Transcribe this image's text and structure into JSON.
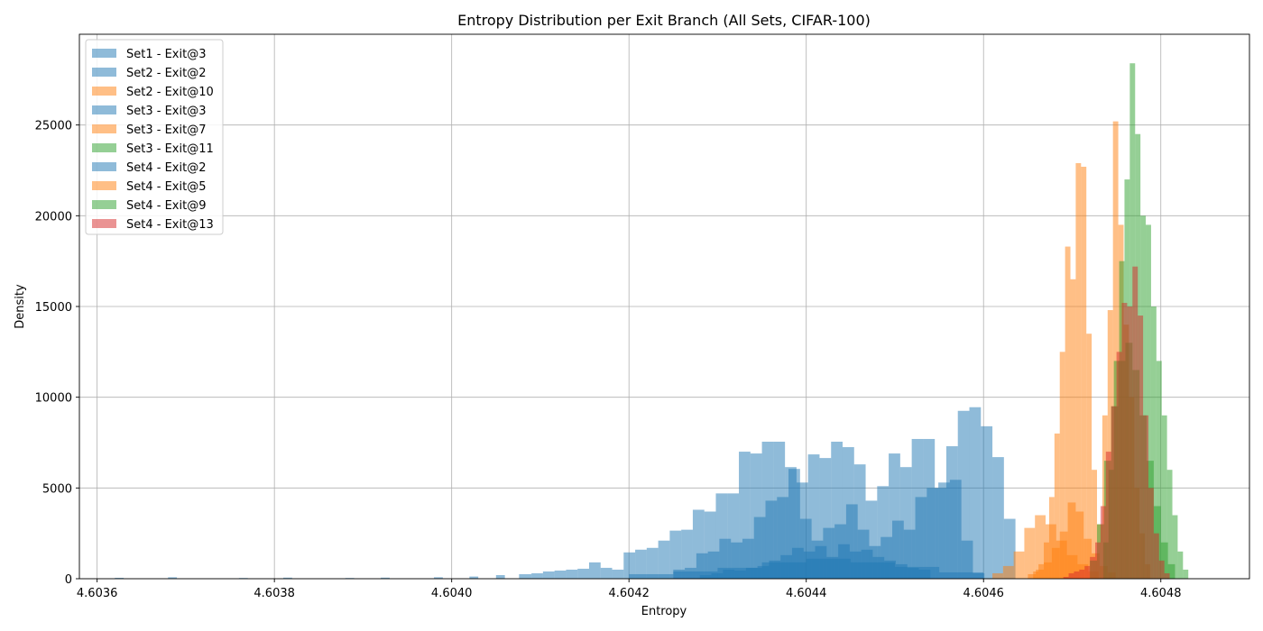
{
  "chart_data": {
    "type": "histogram",
    "title": "Entropy Distribution per Exit Branch (All Sets, CIFAR-100)",
    "xlabel": "Entropy",
    "ylabel": "Density",
    "xlim": [
      4.60358,
      4.6049
    ],
    "ylim": [
      0,
      30000
    ],
    "x_ticks": [
      {
        "value": 4.6036,
        "label": "4.6036"
      },
      {
        "value": 4.6038,
        "label": "4.6038"
      },
      {
        "value": 4.604,
        "label": "4.6040"
      },
      {
        "value": 4.6042,
        "label": "4.6042"
      },
      {
        "value": 4.6044,
        "label": "4.6044"
      },
      {
        "value": 4.6046,
        "label": "4.6046"
      },
      {
        "value": 4.6048,
        "label": "4.6048"
      }
    ],
    "y_ticks": [
      {
        "value": 0,
        "label": "0"
      },
      {
        "value": 5000,
        "label": "5000"
      },
      {
        "value": 10000,
        "label": "10000"
      },
      {
        "value": 15000,
        "label": "15000"
      },
      {
        "value": 20000,
        "label": "20000"
      },
      {
        "value": 25000,
        "label": "25000"
      }
    ],
    "grid": true,
    "legend_position": "upper-left",
    "series": [
      {
        "name": "Set1 - Exit@3",
        "color": "#1f77b4",
        "alpha": 0.5,
        "bins": [
          [
            4.60362,
            4.60363,
            50
          ],
          [
            4.60368,
            4.60369,
            80
          ],
          [
            4.60376,
            4.60377,
            40
          ],
          [
            4.60381,
            4.60382,
            60
          ],
          [
            4.60388,
            4.60389,
            40
          ],
          [
            4.60392,
            4.60393,
            60
          ],
          [
            4.60398,
            4.60399,
            80
          ],
          [
            4.60402,
            4.60403,
            120
          ],
          [
            4.60405,
            4.60406,
            200
          ],
          [
            4.604076,
            4.60409,
            250
          ],
          [
            4.60409,
            4.604103,
            300
          ],
          [
            4.604103,
            4.604116,
            400
          ],
          [
            4.604116,
            4.604129,
            450
          ],
          [
            4.604129,
            4.604142,
            500
          ],
          [
            4.604142,
            4.604155,
            550
          ],
          [
            4.604155,
            4.604168,
            900
          ],
          [
            4.604168,
            4.604181,
            600
          ],
          [
            4.604181,
            4.604194,
            500
          ],
          [
            4.604194,
            4.604207,
            1450
          ],
          [
            4.604207,
            4.60422,
            1600
          ],
          [
            4.60422,
            4.604233,
            1700
          ],
          [
            4.604233,
            4.604246,
            2100
          ],
          [
            4.604246,
            4.604259,
            2650
          ],
          [
            4.604259,
            4.604272,
            2700
          ],
          [
            4.604272,
            4.604285,
            3800
          ],
          [
            4.604285,
            4.604298,
            3700
          ],
          [
            4.604298,
            4.604311,
            4700
          ],
          [
            4.604311,
            4.604324,
            4700
          ],
          [
            4.604324,
            4.604337,
            7000
          ],
          [
            4.604337,
            4.60435,
            6900
          ],
          [
            4.60435,
            4.604363,
            7550
          ],
          [
            4.604363,
            4.604376,
            7550
          ],
          [
            4.604376,
            4.604389,
            6150
          ],
          [
            4.604389,
            4.604402,
            5300
          ],
          [
            4.604402,
            4.604415,
            6850
          ],
          [
            4.604415,
            4.604428,
            6650
          ],
          [
            4.604428,
            4.604441,
            7550
          ],
          [
            4.604441,
            4.604454,
            7250
          ],
          [
            4.604454,
            4.604467,
            6300
          ],
          [
            4.604467,
            4.60448,
            4300
          ],
          [
            4.60448,
            4.604493,
            5100
          ],
          [
            4.604493,
            4.604506,
            6900
          ],
          [
            4.604506,
            4.604519,
            6150
          ],
          [
            4.604519,
            4.604532,
            7700
          ],
          [
            4.604532,
            4.604545,
            7700
          ],
          [
            4.604545,
            4.604558,
            5000
          ],
          [
            4.604558,
            4.604571,
            7300
          ],
          [
            4.604571,
            4.604584,
            9250
          ],
          [
            4.604584,
            4.604597,
            9450
          ],
          [
            4.604597,
            4.60461,
            8400
          ],
          [
            4.60461,
            4.604623,
            6700
          ],
          [
            4.604623,
            4.604636,
            3300
          ]
        ]
      },
      {
        "name": "Set2 - Exit@2",
        "color": "#1f77b4",
        "alpha": 0.5,
        "bins": [
          [
            4.60428,
            4.604293,
            200
          ],
          [
            4.604293,
            4.604306,
            300
          ],
          [
            4.604306,
            4.604319,
            500
          ],
          [
            4.604319,
            4.604332,
            450
          ],
          [
            4.604332,
            4.604345,
            600
          ],
          [
            4.604345,
            4.604358,
            700
          ],
          [
            4.604358,
            4.604371,
            1000
          ],
          [
            4.604371,
            4.604384,
            1300
          ],
          [
            4.604384,
            4.604397,
            1700
          ],
          [
            4.604397,
            4.60441,
            1500
          ],
          [
            4.60441,
            4.604423,
            1800
          ],
          [
            4.604423,
            4.604436,
            1200
          ],
          [
            4.604436,
            4.604449,
            1900
          ],
          [
            4.604449,
            4.604462,
            1500
          ],
          [
            4.604462,
            4.604475,
            1600
          ],
          [
            4.604475,
            4.604488,
            1200
          ],
          [
            4.604488,
            4.604501,
            1000
          ],
          [
            4.604501,
            4.604514,
            800
          ],
          [
            4.604514,
            4.604527,
            600
          ],
          [
            4.604527,
            4.60454,
            500
          ]
        ]
      },
      {
        "name": "Set2 - Exit@10",
        "color": "#ff7f0e",
        "alpha": 0.5,
        "bins": [
          [
            4.60465,
            4.604659,
            250
          ],
          [
            4.604659,
            4.604668,
            500
          ],
          [
            4.604668,
            4.604677,
            900
          ],
          [
            4.604677,
            4.604686,
            1700
          ],
          [
            4.604686,
            4.604695,
            2600
          ],
          [
            4.604695,
            4.604704,
            4200
          ],
          [
            4.604704,
            4.604713,
            3700
          ],
          [
            4.604713,
            4.604722,
            2200
          ],
          [
            4.604722,
            4.604731,
            1400
          ],
          [
            4.604731,
            4.60474,
            700
          ],
          [
            4.60474,
            4.604749,
            350
          ]
        ]
      },
      {
        "name": "Set3 - Exit@3",
        "color": "#1f77b4",
        "alpha": 0.5,
        "bins": [
          [
            4.60425,
            4.604263,
            500
          ],
          [
            4.604263,
            4.604276,
            600
          ],
          [
            4.604276,
            4.604289,
            1400
          ],
          [
            4.604289,
            4.604302,
            1500
          ],
          [
            4.604302,
            4.604315,
            2200
          ],
          [
            4.604315,
            4.604328,
            2000
          ],
          [
            4.604328,
            4.604341,
            2200
          ],
          [
            4.604341,
            4.604354,
            3400
          ],
          [
            4.604354,
            4.604367,
            4300
          ],
          [
            4.604367,
            4.60438,
            4500
          ],
          [
            4.60438,
            4.604393,
            6050
          ],
          [
            4.604393,
            4.604406,
            3300
          ],
          [
            4.604406,
            4.604419,
            2100
          ],
          [
            4.604419,
            4.604432,
            2800
          ],
          [
            4.604432,
            4.604445,
            3000
          ],
          [
            4.604445,
            4.604458,
            4100
          ],
          [
            4.604458,
            4.604471,
            2700
          ],
          [
            4.604471,
            4.604484,
            1800
          ],
          [
            4.604484,
            4.604497,
            2300
          ],
          [
            4.604497,
            4.60451,
            3200
          ],
          [
            4.60451,
            4.604523,
            2700
          ],
          [
            4.604523,
            4.604536,
            4500
          ],
          [
            4.604536,
            4.604549,
            5000
          ],
          [
            4.604549,
            4.604562,
            5300
          ],
          [
            4.604562,
            4.604575,
            5450
          ],
          [
            4.604575,
            4.604588,
            2100
          ],
          [
            4.604588,
            4.604601,
            300
          ]
        ]
      },
      {
        "name": "Set3 - Exit@7",
        "color": "#ff7f0e",
        "alpha": 0.5,
        "bins": [
          [
            4.604656,
            4.604662,
            400
          ],
          [
            4.604662,
            4.604668,
            800
          ],
          [
            4.604668,
            4.604674,
            2000
          ],
          [
            4.604674,
            4.60468,
            4500
          ],
          [
            4.60468,
            4.604686,
            8000
          ],
          [
            4.604686,
            4.604692,
            12500
          ],
          [
            4.604692,
            4.604698,
            18300
          ],
          [
            4.604698,
            4.604704,
            16500
          ],
          [
            4.604704,
            4.60471,
            22900
          ],
          [
            4.60471,
            4.604716,
            22700
          ],
          [
            4.604716,
            4.604722,
            13500
          ],
          [
            4.604722,
            4.604728,
            6000
          ],
          [
            4.604728,
            4.604734,
            3000
          ],
          [
            4.604734,
            4.60474,
            9000
          ],
          [
            4.60474,
            4.604746,
            14800
          ],
          [
            4.604746,
            4.604752,
            25200
          ],
          [
            4.604752,
            4.604758,
            19500
          ],
          [
            4.604758,
            4.604764,
            14000
          ],
          [
            4.604764,
            4.60477,
            10000
          ],
          [
            4.60477,
            4.604776,
            5000
          ],
          [
            4.604776,
            4.604782,
            2500
          ],
          [
            4.604782,
            4.604788,
            800
          ]
        ]
      },
      {
        "name": "Set3 - Exit@11",
        "color": "#2ca02c",
        "alpha": 0.5,
        "bins": [
          [
            4.604735,
            4.604741,
            2000
          ],
          [
            4.604741,
            4.604747,
            6000
          ],
          [
            4.604747,
            4.604753,
            12000
          ],
          [
            4.604753,
            4.604759,
            17500
          ],
          [
            4.604759,
            4.604765,
            22000
          ],
          [
            4.604765,
            4.604771,
            28400
          ],
          [
            4.604771,
            4.604777,
            24500
          ],
          [
            4.604777,
            4.604783,
            20000
          ],
          [
            4.604783,
            4.604789,
            19500
          ],
          [
            4.604789,
            4.604795,
            15000
          ],
          [
            4.604795,
            4.604801,
            12000
          ],
          [
            4.604801,
            4.604807,
            9000
          ],
          [
            4.604807,
            4.604813,
            6000
          ],
          [
            4.604813,
            4.604819,
            3500
          ],
          [
            4.604819,
            4.604825,
            1500
          ],
          [
            4.604825,
            4.604831,
            500
          ]
        ]
      },
      {
        "name": "Set4 - Exit@2",
        "color": "#1f77b4",
        "alpha": 0.5,
        "bins": [
          [
            4.6042,
            4.60425,
            250
          ],
          [
            4.60425,
            4.6043,
            400
          ],
          [
            4.6043,
            4.60435,
            600
          ],
          [
            4.60435,
            4.6044,
            900
          ],
          [
            4.6044,
            4.60445,
            1100
          ],
          [
            4.60445,
            4.6045,
            900
          ],
          [
            4.6045,
            4.60455,
            650
          ],
          [
            4.60455,
            4.6046,
            350
          ]
        ]
      },
      {
        "name": "Set4 - Exit@5",
        "color": "#ff7f0e",
        "alpha": 0.5,
        "bins": [
          [
            4.60461,
            4.604622,
            300
          ],
          [
            4.604622,
            4.604634,
            700
          ],
          [
            4.604634,
            4.604646,
            1500
          ],
          [
            4.604646,
            4.604658,
            2800
          ],
          [
            4.604658,
            4.60467,
            3500
          ],
          [
            4.60467,
            4.604682,
            3000
          ],
          [
            4.604682,
            4.604694,
            2100
          ],
          [
            4.604694,
            4.604706,
            1300
          ],
          [
            4.604706,
            4.604718,
            800
          ],
          [
            4.604718,
            4.60473,
            400
          ]
        ]
      },
      {
        "name": "Set4 - Exit@9",
        "color": "#2ca02c",
        "alpha": 0.5,
        "bins": [
          [
            4.60472,
            4.604728,
            1000
          ],
          [
            4.604728,
            4.604736,
            3000
          ],
          [
            4.604736,
            4.604744,
            6500
          ],
          [
            4.604744,
            4.604752,
            9500
          ],
          [
            4.604752,
            4.60476,
            12000
          ],
          [
            4.60476,
            4.604768,
            13000
          ],
          [
            4.604768,
            4.604776,
            11500
          ],
          [
            4.604776,
            4.604784,
            9000
          ],
          [
            4.604784,
            4.604792,
            6500
          ],
          [
            4.604792,
            4.6048,
            4000
          ],
          [
            4.6048,
            4.604808,
            2000
          ],
          [
            4.604808,
            4.604816,
            800
          ]
        ]
      },
      {
        "name": "Set4 - Exit@13",
        "color": "#d62728",
        "alpha": 0.5,
        "bins": [
          [
            4.60469,
            4.604696,
            100
          ],
          [
            4.604696,
            4.604702,
            300
          ],
          [
            4.604702,
            4.604708,
            400
          ],
          [
            4.604708,
            4.604714,
            500
          ],
          [
            4.604714,
            4.60472,
            700
          ],
          [
            4.60472,
            4.604726,
            1200
          ],
          [
            4.604726,
            4.604732,
            2000
          ],
          [
            4.604732,
            4.604738,
            4000
          ],
          [
            4.604738,
            4.604744,
            7000
          ],
          [
            4.604744,
            4.60475,
            9500
          ],
          [
            4.60475,
            4.604756,
            12500
          ],
          [
            4.604756,
            4.604762,
            15200
          ],
          [
            4.604762,
            4.604768,
            15000
          ],
          [
            4.604768,
            4.604774,
            17200
          ],
          [
            4.604774,
            4.60478,
            14500
          ],
          [
            4.60478,
            4.604786,
            9000
          ],
          [
            4.604786,
            4.604792,
            5000
          ],
          [
            4.604792,
            4.604798,
            2500
          ],
          [
            4.604798,
            4.604804,
            1000
          ],
          [
            4.604804,
            4.60481,
            300
          ]
        ]
      }
    ]
  }
}
